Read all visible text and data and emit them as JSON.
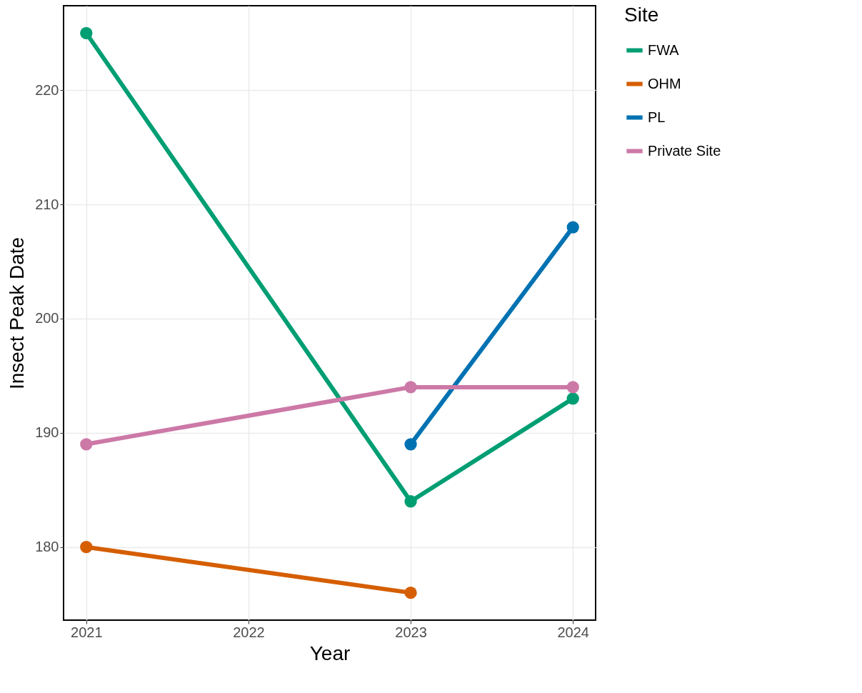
{
  "chart_data": {
    "type": "line",
    "xlabel": "Year",
    "ylabel": "Insect Peak Date",
    "legend_title": "Site",
    "xlim": [
      2020.86,
      2024.14
    ],
    "xticks": [
      2021,
      2022,
      2023,
      2024
    ],
    "ylim": [
      173.6,
      227.4
    ],
    "yticks": [
      180,
      190,
      200,
      210,
      220
    ],
    "grid": true,
    "legend": "right",
    "marker": "circle",
    "line_style": "solid",
    "series": [
      {
        "name": "FWA",
        "color": "#009e73",
        "x": [
          2021,
          2023,
          2024
        ],
        "values": [
          225,
          184,
          193
        ]
      },
      {
        "name": "OHM",
        "color": "#d55e00",
        "x": [
          2021,
          2023
        ],
        "values": [
          180,
          176
        ]
      },
      {
        "name": "PL",
        "color": "#0072b2",
        "x": [
          2023,
          2024
        ],
        "values": [
          189,
          208
        ]
      },
      {
        "name": "Private Site",
        "color": "#cc79a7",
        "x": [
          2021,
          2023,
          2024
        ],
        "values": [
          189,
          194,
          194
        ]
      }
    ]
  }
}
